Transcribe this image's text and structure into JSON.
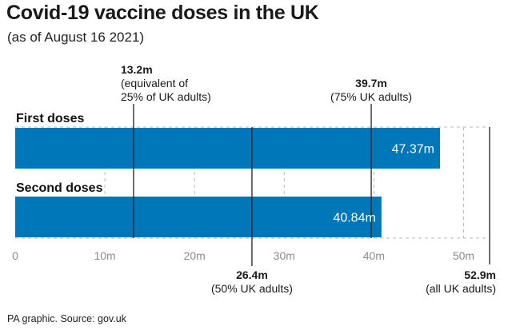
{
  "title": "Covid-19 vaccine doses in the UK",
  "subtitle": "(as of August 16 2021)",
  "source": "PA graphic. Source: gov.uk",
  "colors": {
    "bar": "#0077b8",
    "reference_line": "#222222",
    "grid": "#bbbbbb",
    "tick_text": "#8c8c8c"
  },
  "chart_data": {
    "type": "bar",
    "orientation": "horizontal",
    "categories": [
      "First doses",
      "Second doses"
    ],
    "values": [
      47.37,
      40.84
    ],
    "value_labels": [
      "47.37m",
      "40.84m"
    ],
    "xlim": [
      0,
      52.9
    ],
    "xticks": [
      0,
      10,
      20,
      30,
      40,
      50
    ],
    "xtick_labels": [
      "0",
      "10m",
      "20m",
      "30m",
      "40m",
      "50m"
    ],
    "grid": true,
    "reference_lines": [
      {
        "value": 13.2,
        "position": "top",
        "label_value": "13.2m",
        "label_text": [
          "(equivalent of",
          "25% of UK adults)"
        ]
      },
      {
        "value": 39.7,
        "position": "top",
        "label_value": "39.7m",
        "label_text": [
          "(75% UK adults)"
        ]
      },
      {
        "value": 26.4,
        "position": "bottom",
        "label_value": "26.4m",
        "label_text": [
          "(50% UK adults)"
        ]
      },
      {
        "value": 52.9,
        "position": "bottom",
        "label_value": "52.9m",
        "label_text": [
          "(all UK adults)"
        ]
      }
    ]
  }
}
